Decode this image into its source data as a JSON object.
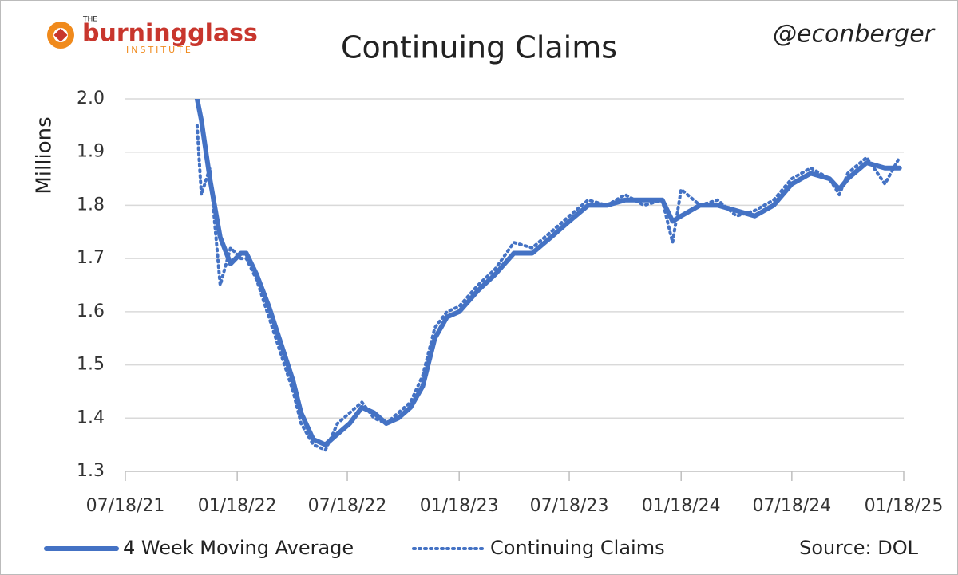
{
  "logo": {
    "top": "THE",
    "name": "burningglass",
    "sub": "INSTITUTE"
  },
  "handle": "@econberger",
  "source": "Source: DOL",
  "chart_data": {
    "type": "line",
    "title": "Continuing Claims",
    "y_label": "Millions",
    "xlim": [
      "2021-07-18",
      "2025-01-18"
    ],
    "xticks": [
      {
        "value": "2021-07-18",
        "label": "07/18/21"
      },
      {
        "value": "2022-01-18",
        "label": "01/18/22"
      },
      {
        "value": "2022-07-18",
        "label": "07/18/22"
      },
      {
        "value": "2023-01-18",
        "label": "01/18/23"
      },
      {
        "value": "2023-07-18",
        "label": "07/18/23"
      },
      {
        "value": "2024-01-18",
        "label": "01/18/24"
      },
      {
        "value": "2024-07-18",
        "label": "07/18/24"
      },
      {
        "value": "2025-01-18",
        "label": "01/18/25"
      }
    ],
    "ylim": [
      1.3,
      2.0
    ],
    "yticks": [
      {
        "value": 1.3,
        "label": "1.3"
      },
      {
        "value": 1.4,
        "label": "1.4"
      },
      {
        "value": 1.5,
        "label": "1.5"
      },
      {
        "value": 1.6,
        "label": "1.6"
      },
      {
        "value": 1.7,
        "label": "1.7"
      },
      {
        "value": 1.8,
        "label": "1.8"
      },
      {
        "value": 1.9,
        "label": "1.9"
      },
      {
        "value": 2.0,
        "label": "2.0"
      }
    ],
    "grid": true,
    "x": [
      "2021-11-13",
      "2021-11-20",
      "2021-12-04",
      "2021-12-21",
      "2022-01-07",
      "2022-01-24",
      "2022-02-02",
      "2022-02-19",
      "2022-03-11",
      "2022-03-31",
      "2022-04-20",
      "2022-05-03",
      "2022-05-23",
      "2022-06-12",
      "2022-07-02",
      "2022-07-22",
      "2022-08-11",
      "2022-08-31",
      "2022-09-20",
      "2022-10-10",
      "2022-10-30",
      "2022-11-19",
      "2022-12-09",
      "2022-12-29",
      "2023-01-18",
      "2023-02-18",
      "2023-03-18",
      "2023-04-18",
      "2023-05-18",
      "2023-06-18",
      "2023-07-18",
      "2023-08-18",
      "2023-09-18",
      "2023-10-18",
      "2023-11-18",
      "2023-12-18",
      "2024-01-04",
      "2024-01-18",
      "2024-02-18",
      "2024-03-18",
      "2024-04-18",
      "2024-05-18",
      "2024-06-18",
      "2024-07-18",
      "2024-08-18",
      "2024-09-18",
      "2024-10-04",
      "2024-10-18",
      "2024-11-18",
      "2024-12-18",
      "2025-01-11"
    ],
    "series": [
      {
        "name": "4 Week Moving Average",
        "color": "#4472c4",
        "style": "solid",
        "values": [
          2.0,
          1.96,
          1.85,
          1.74,
          1.69,
          1.71,
          1.71,
          1.67,
          1.61,
          1.54,
          1.47,
          1.41,
          1.36,
          1.35,
          1.37,
          1.39,
          1.42,
          1.41,
          1.39,
          1.4,
          1.42,
          1.46,
          1.55,
          1.59,
          1.6,
          1.64,
          1.67,
          1.71,
          1.71,
          1.74,
          1.77,
          1.8,
          1.8,
          1.81,
          1.81,
          1.81,
          1.77,
          1.78,
          1.8,
          1.8,
          1.79,
          1.78,
          1.8,
          1.84,
          1.86,
          1.85,
          1.83,
          1.85,
          1.88,
          1.87,
          1.87
        ]
      },
      {
        "name": "Continuing Claims",
        "color": "#4472c4",
        "style": "dotted",
        "values": [
          1.95,
          1.82,
          1.87,
          1.65,
          1.72,
          1.7,
          1.7,
          1.66,
          1.59,
          1.52,
          1.45,
          1.39,
          1.35,
          1.34,
          1.39,
          1.41,
          1.43,
          1.4,
          1.39,
          1.41,
          1.43,
          1.48,
          1.57,
          1.6,
          1.61,
          1.65,
          1.68,
          1.73,
          1.72,
          1.75,
          1.78,
          1.81,
          1.8,
          1.82,
          1.8,
          1.81,
          1.73,
          1.83,
          1.8,
          1.81,
          1.78,
          1.79,
          1.81,
          1.85,
          1.87,
          1.85,
          1.82,
          1.86,
          1.89,
          1.84,
          1.89
        ]
      }
    ]
  }
}
